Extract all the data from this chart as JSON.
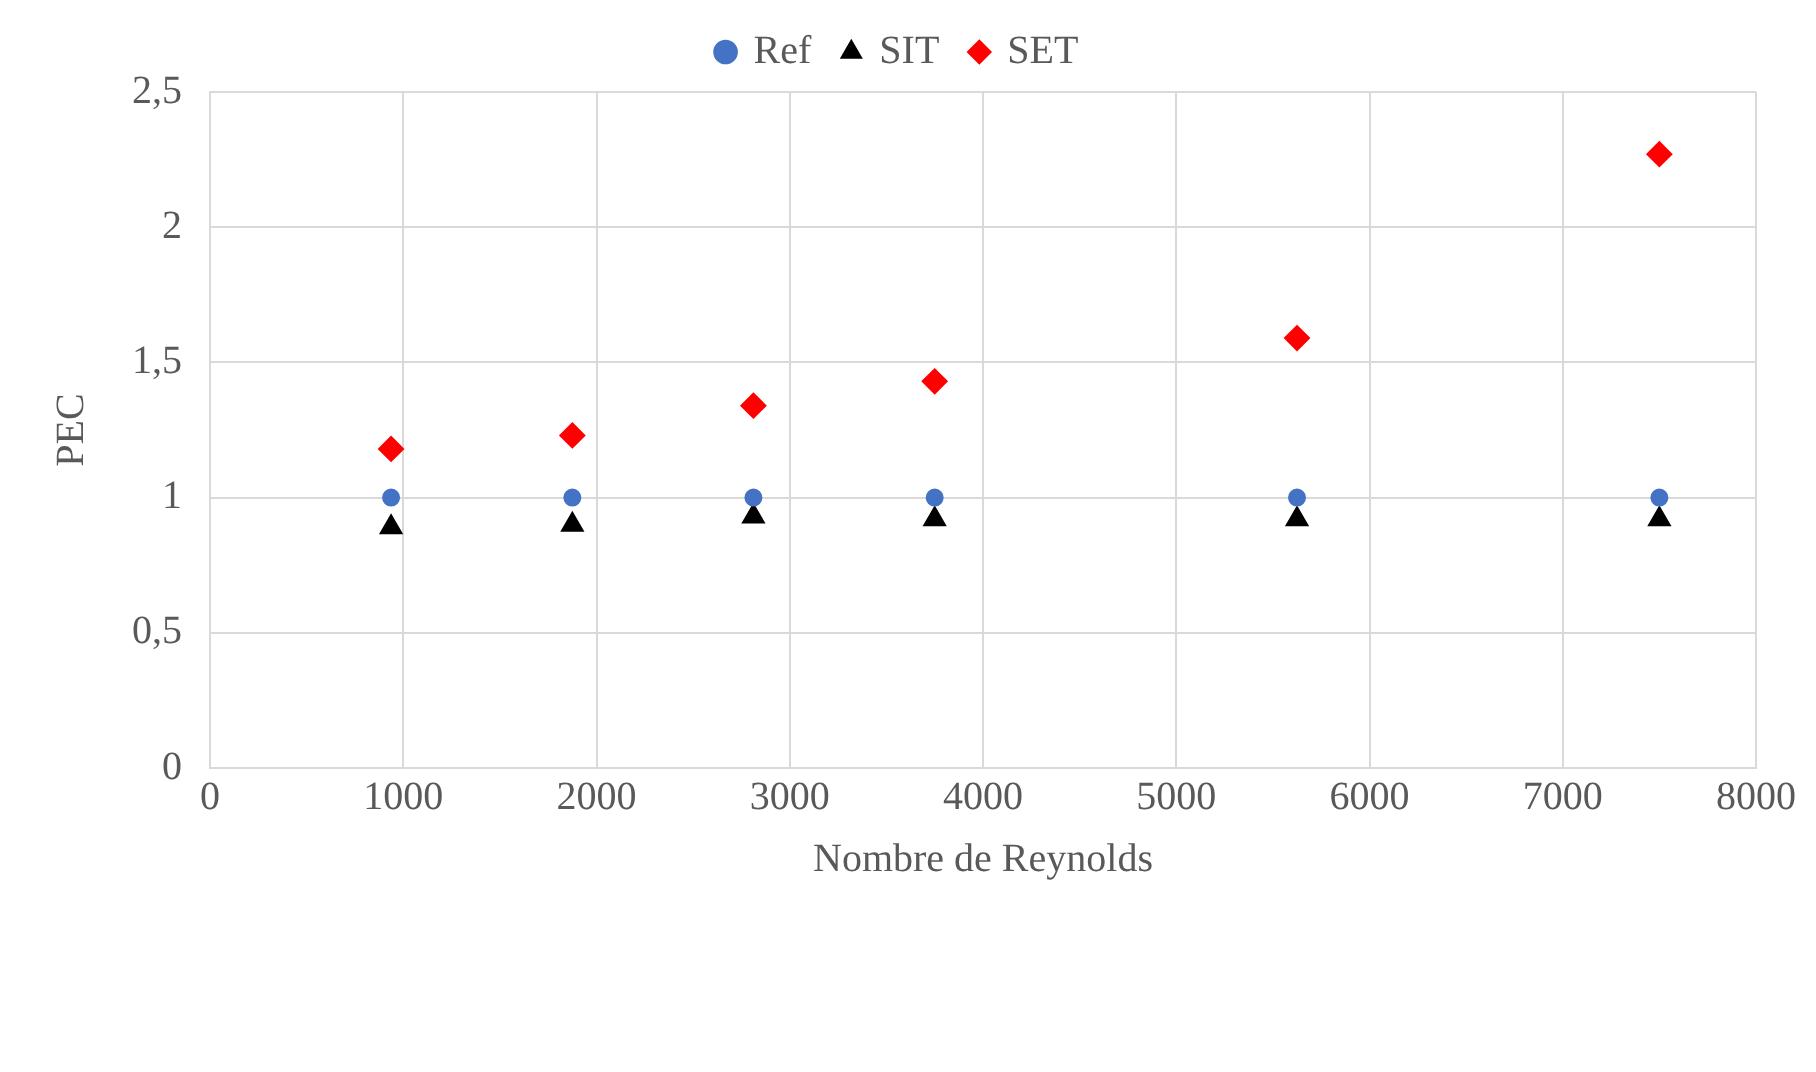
{
  "chart_data": {
    "type": "scatter",
    "xlabel": "Nombre de Reynolds",
    "ylabel": "PEC",
    "x": [
      937,
      1875,
      2812,
      3750,
      5625,
      7500
    ],
    "series": [
      {
        "name": "Ref",
        "color": "#4472c4",
        "marker": "circle",
        "values": [
          1,
          1,
          1,
          1,
          1,
          1
        ]
      },
      {
        "name": "SIT",
        "color": "#000000",
        "marker": "triangle",
        "values": [
          0.89,
          0.9,
          0.93,
          0.92,
          0.92,
          0.92
        ]
      },
      {
        "name": "SET",
        "color": "#ff0000",
        "marker": "diamond",
        "values": [
          1.18,
          1.23,
          1.34,
          1.43,
          1.59,
          2.27
        ]
      }
    ],
    "xlim": [
      0,
      8000
    ],
    "xticks": [
      0,
      1000,
      2000,
      3000,
      4000,
      5000,
      6000,
      7000,
      8000
    ],
    "ylim": [
      0,
      2.5
    ],
    "yticks": [
      {
        "value": 0,
        "label": "0"
      },
      {
        "value": 0.5,
        "label": "0,5"
      },
      {
        "value": 1,
        "label": "1"
      },
      {
        "value": 1.5,
        "label": "1,5"
      },
      {
        "value": 2,
        "label": "2"
      },
      {
        "value": 2.5,
        "label": "2,5"
      }
    ],
    "grid": true,
    "legend": "top"
  }
}
